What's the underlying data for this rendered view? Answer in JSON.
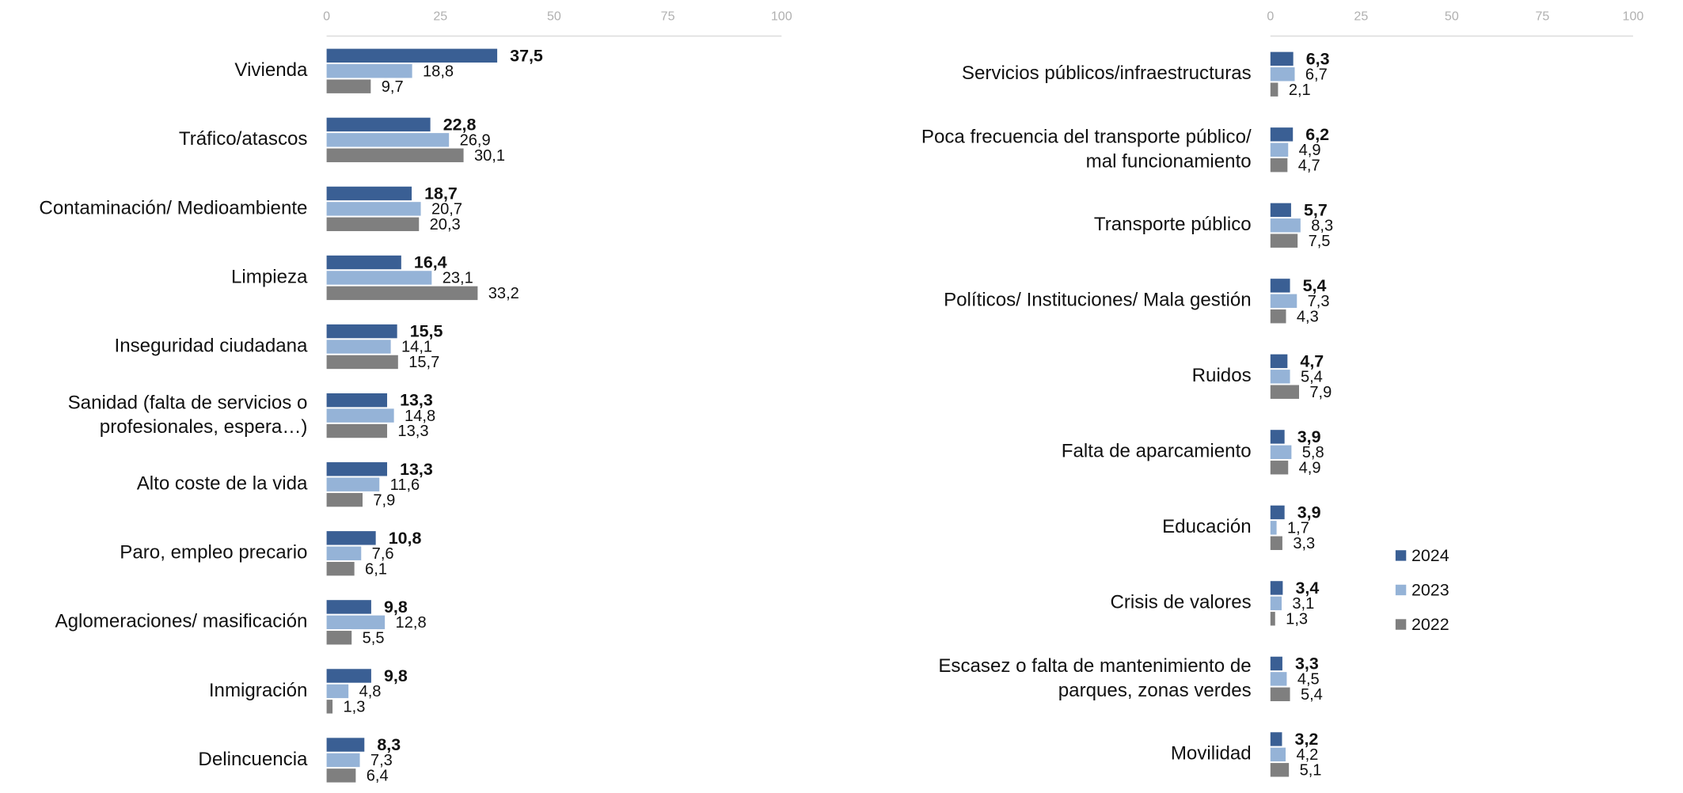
{
  "chart_data": [
    {
      "type": "hbar",
      "categories": [
        "Vivienda",
        "Tráfico/atascos",
        "Contaminación/ Medioambiente",
        "Limpieza",
        "Inseguridad ciudadana",
        "Sanidad (falta de servicios o\nprofesionales, espera…)",
        "Alto coste de la vida",
        "Paro, empleo precario",
        "Aglomeraciones/ masificación",
        "Inmigración",
        "Delincuencia"
      ],
      "series": [
        {
          "color": "#3a5f94",
          "values": [
            37.5,
            22.8,
            18.7,
            16.4,
            15.5,
            13.3,
            13.3,
            10.8,
            9.8,
            9.8,
            8.3
          ],
          "value_labels": [
            "37,5",
            "22,8",
            "18,7",
            "16,4",
            "15,5",
            "13,3",
            "13,3",
            "10,8",
            "9,8",
            "9,8",
            "8,3"
          ]
        },
        {
          "color": "#95b3d7",
          "values": [
            18.8,
            26.9,
            20.7,
            23.1,
            14.1,
            14.8,
            11.6,
            7.6,
            12.8,
            4.8,
            7.3
          ],
          "value_labels": [
            "18,8",
            "26,9",
            "20,7",
            "23,1",
            "14,1",
            "14,8",
            "11,6",
            "7,6",
            "12,8",
            "4,8",
            "7,3"
          ]
        },
        {
          "color": "#7f7f7f",
          "values": [
            9.7,
            30.1,
            20.3,
            33.2,
            15.7,
            13.3,
            7.9,
            6.1,
            5.5,
            1.3,
            6.4
          ],
          "value_labels": [
            "9,7",
            "30,1",
            "20,3",
            "33,2",
            "15,7",
            "13,3",
            "7,9",
            "6,1",
            "5,5",
            "1,3",
            "6,4"
          ]
        }
      ],
      "xlim": [
        0,
        100
      ],
      "xticks": [
        0,
        25,
        50,
        75,
        100
      ]
    },
    {
      "type": "hbar",
      "categories": [
        "Servicios públicos/infraestructuras",
        "Poca frecuencia del transporte público/\nmal funcionamiento",
        "Transporte público",
        "Políticos/ Instituciones/ Mala gestión",
        "Ruidos",
        "Falta de aparcamiento",
        "Educación",
        "Crisis de valores",
        "Escasez o falta de mantenimiento de\nparques, zonas verdes",
        "Movilidad"
      ],
      "series": [
        {
          "name": "2024",
          "color": "#3a5f94",
          "values": [
            6.3,
            6.2,
            5.7,
            5.4,
            4.7,
            3.9,
            3.9,
            3.4,
            3.3,
            3.2
          ],
          "value_labels": [
            "6,3",
            "6,2",
            "5,7",
            "5,4",
            "4,7",
            "3,9",
            "3,9",
            "3,4",
            "3,3",
            "3,2"
          ]
        },
        {
          "name": "2023",
          "color": "#95b3d7",
          "values": [
            6.7,
            4.9,
            8.3,
            7.3,
            5.4,
            5.8,
            1.7,
            3.1,
            4.5,
            4.2
          ],
          "value_labels": [
            "6,7",
            "4,9",
            "8,3",
            "7,3",
            "5,4",
            "5,8",
            "1,7",
            "3,1",
            "4,5",
            "4,2"
          ]
        },
        {
          "name": "2022",
          "color": "#7f7f7f",
          "values": [
            2.1,
            4.7,
            7.5,
            4.3,
            7.9,
            4.9,
            3.3,
            1.3,
            5.4,
            5.1
          ],
          "value_labels": [
            "2,1",
            "4,7",
            "7,5",
            "4,3",
            "7,9",
            "4,9",
            "3,3",
            "1,3",
            "5,4",
            "5,1"
          ]
        }
      ],
      "xlim": [
        0,
        100
      ],
      "xticks": [
        0,
        25,
        50,
        75,
        100
      ]
    }
  ]
}
